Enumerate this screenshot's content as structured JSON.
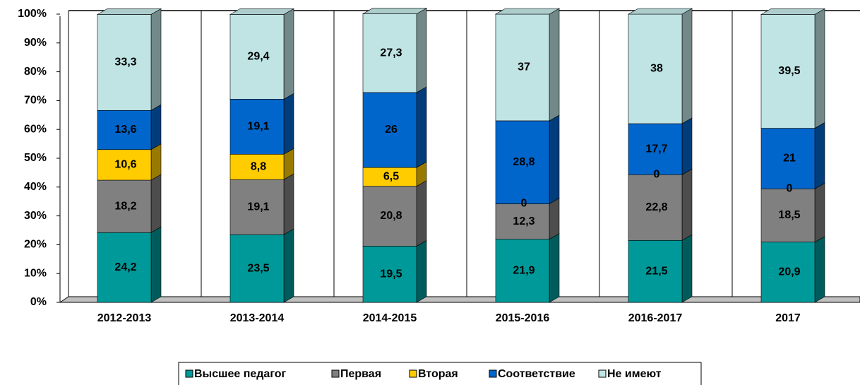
{
  "chart_data": {
    "type": "bar",
    "stacked": true,
    "categories": [
      "2012-2013",
      "2013-2014",
      "2014-2015",
      "2015-2016",
      "2016-2017",
      "2017"
    ],
    "series": [
      {
        "name": "Высшее педагог",
        "color": "#009999",
        "values": [
          24.2,
          23.5,
          19.5,
          21.9,
          21.5,
          20.9
        ],
        "value_labels": [
          "24,2",
          "23,5",
          "19,5",
          "21,9",
          "21,5",
          "20,9"
        ]
      },
      {
        "name": "Первая",
        "color": "#808080",
        "values": [
          18.2,
          19.1,
          20.8,
          12.3,
          22.8,
          18.5
        ],
        "value_labels": [
          "18,2",
          "19,1",
          "20,8",
          "12,3",
          "22,8",
          "18,5"
        ]
      },
      {
        "name": "Вторая",
        "color": "#ffcc00",
        "values": [
          10.6,
          8.8,
          6.5,
          0,
          0,
          0
        ],
        "value_labels": [
          "10,6",
          "8,8",
          "6,5",
          "0",
          "0",
          "0"
        ]
      },
      {
        "name": "Соответствие",
        "color": "#0066cc",
        "values": [
          13.6,
          19.1,
          26,
          28.8,
          17.7,
          21
        ],
        "value_labels": [
          "13,6",
          "19,1",
          "26",
          "28,8",
          "17,7",
          "21"
        ]
      },
      {
        "name": "Не имеют",
        "color": "#c0e4e4",
        "values": [
          33.3,
          29.4,
          27.3,
          37,
          38,
          39.5
        ],
        "value_labels": [
          "33,3",
          "29,4",
          "27,3",
          "37",
          "38",
          "39,5"
        ]
      }
    ],
    "ylim": [
      0,
      100
    ],
    "yticks": [
      {
        "value": 0,
        "label": "0%"
      },
      {
        "value": 10,
        "label": "10%"
      },
      {
        "value": 20,
        "label": "20%"
      },
      {
        "value": 30,
        "label": "30%"
      },
      {
        "value": 40,
        "label": "40%"
      },
      {
        "value": 50,
        "label": "50%"
      },
      {
        "value": 60,
        "label": "60%"
      },
      {
        "value": 70,
        "label": "70%"
      },
      {
        "value": 80,
        "label": "80%"
      },
      {
        "value": 90,
        "label": "90%"
      },
      {
        "value": 100,
        "label": "100%"
      }
    ],
    "legend": "bottom"
  }
}
